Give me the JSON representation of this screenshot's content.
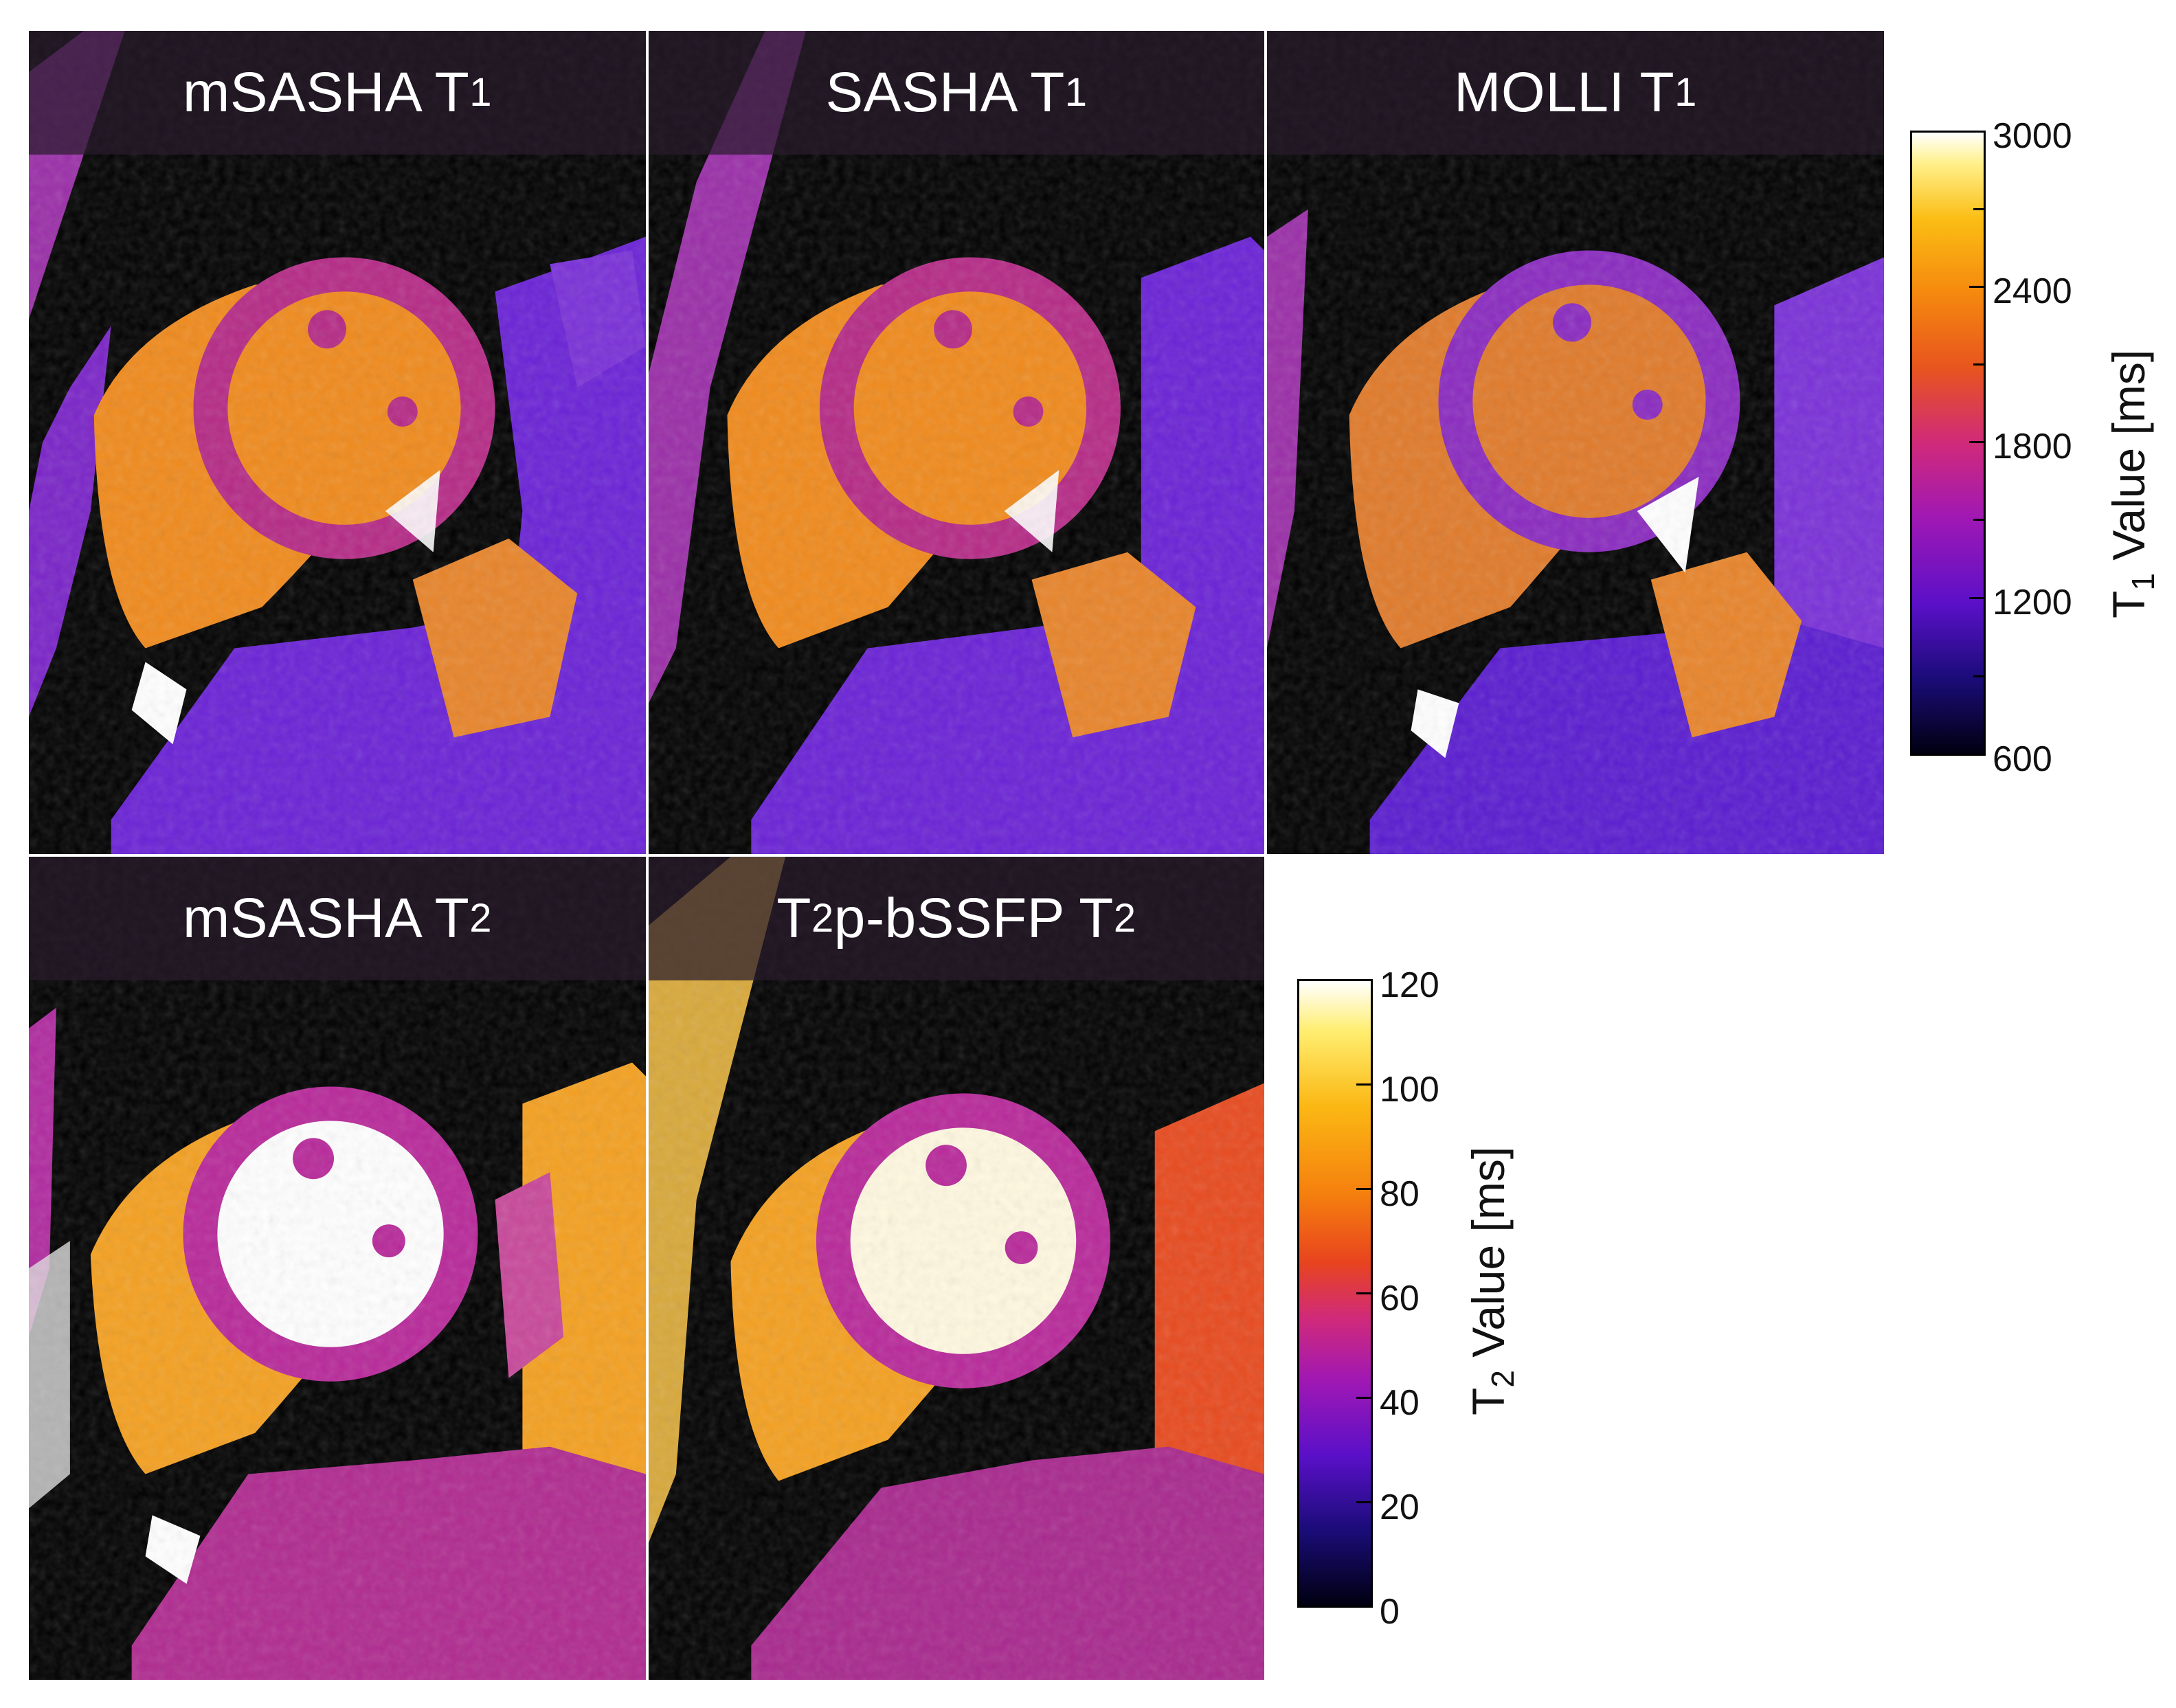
{
  "panels": [
    {
      "id": "msasha-t1",
      "title_main": "mSASHA T",
      "title_sub": "1"
    },
    {
      "id": "sasha-t1",
      "title_main": "SASHA T",
      "title_sub": "1"
    },
    {
      "id": "molli-t1",
      "title_main": "MOLLI T",
      "title_sub": "1"
    },
    {
      "id": "msasha-t2",
      "title_main": "mSASHA T",
      "title_sub": "2"
    },
    {
      "id": "t2p-bssfp-t2",
      "title_pre": "T",
      "title_pre_sub": "2",
      "title_main": "p-bSSFP T",
      "title_sub": "2"
    }
  ],
  "t1_colorbar": {
    "title_main": "T",
    "title_sub": "1",
    "title_rest": " Value [ms]",
    "ticks": [
      "3000",
      "2400",
      "1800",
      "1200",
      "600"
    ]
  },
  "t2_colorbar": {
    "title_main": "T",
    "title_sub": "2",
    "title_rest": " Value [ms]",
    "ticks": [
      "120",
      "100",
      "80",
      "60",
      "40",
      "20",
      "0"
    ]
  },
  "colors": {
    "blood_t1": "#f08a1c",
    "myocardium_t1": "#b52a86",
    "blood_t2": "#ffffff",
    "myocardium_t2": "#b8289a",
    "tissue_orange": "#f4a020",
    "liver_purple": "#6a22d6"
  }
}
